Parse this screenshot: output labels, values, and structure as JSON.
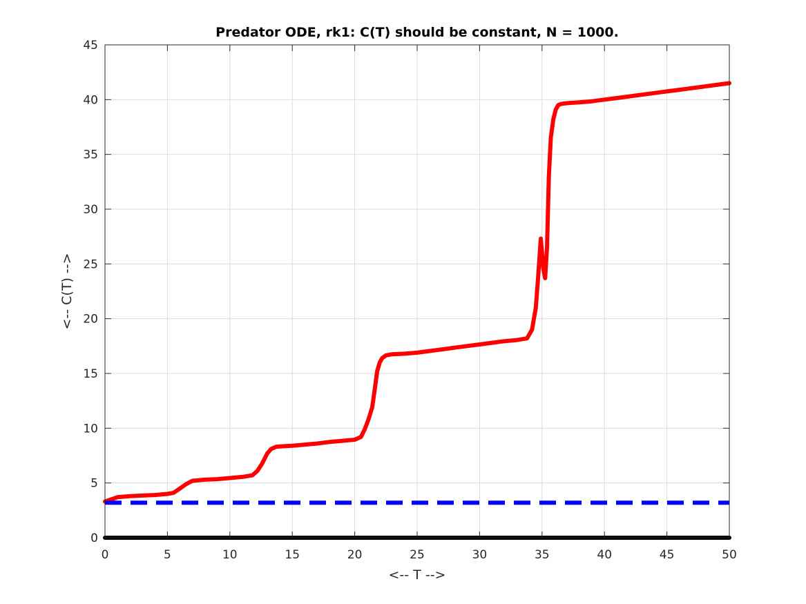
{
  "chart_data": {
    "type": "line",
    "title": "Predator ODE, rk1: C(T) should be constant, N = 1000.",
    "xlabel": "<-- T -->",
    "ylabel": "<-- C(T) -->",
    "xlim": [
      0,
      50
    ],
    "ylim": [
      0,
      45
    ],
    "xticks": [
      "0",
      "5",
      "10",
      "15",
      "20",
      "25",
      "30",
      "35",
      "40",
      "45",
      "50"
    ],
    "yticks": [
      "0",
      "5",
      "10",
      "15",
      "20",
      "25",
      "30",
      "35",
      "40",
      "45"
    ],
    "grid": true,
    "legend": "none",
    "series": [
      {
        "color": "#ff0000",
        "style": "solid",
        "x": [
          0,
          0.5,
          1,
          2,
          3,
          4,
          5,
          5.5,
          6,
          6.5,
          7,
          8,
          9,
          10,
          11,
          11.8,
          12.2,
          12.6,
          13,
          13.3,
          13.7,
          14.2,
          15,
          16,
          17,
          18,
          19,
          20,
          20.5,
          20.8,
          21.1,
          21.4,
          21.6,
          21.8,
          22,
          22.2,
          22.5,
          23,
          24,
          25,
          26,
          27,
          28,
          29,
          30,
          31,
          32,
          33,
          33.8,
          34.2,
          34.5,
          34.7,
          34.9,
          35,
          35.1,
          35.25,
          35.4,
          35.55,
          35.7,
          35.9,
          36.1,
          36.3,
          36.5,
          36.8,
          37.2,
          38,
          39,
          40,
          41,
          42,
          43,
          44,
          45,
          46,
          47,
          48,
          49,
          50
        ],
        "y": [
          3.3,
          3.5,
          3.7,
          3.8,
          3.85,
          3.9,
          4.0,
          4.1,
          4.5,
          4.9,
          5.2,
          5.3,
          5.35,
          5.45,
          5.55,
          5.7,
          6.1,
          6.8,
          7.7,
          8.1,
          8.3,
          8.35,
          8.4,
          8.5,
          8.6,
          8.75,
          8.85,
          8.95,
          9.2,
          9.9,
          10.8,
          11.9,
          13.5,
          15.2,
          16.0,
          16.4,
          16.65,
          16.75,
          16.8,
          16.9,
          17.05,
          17.2,
          17.35,
          17.5,
          17.65,
          17.8,
          17.95,
          18.05,
          18.2,
          19.0,
          21.0,
          24.0,
          27.3,
          26.0,
          24.6,
          23.7,
          26.5,
          33.0,
          36.5,
          38.2,
          39.1,
          39.5,
          39.6,
          39.65,
          39.7,
          39.75,
          39.85,
          40.0,
          40.15,
          40.3,
          40.45,
          40.6,
          40.75,
          40.9,
          41.05,
          41.2,
          41.35,
          41.5
        ]
      },
      {
        "color": "#0000ff",
        "style": "dashed",
        "x": [
          0,
          50
        ],
        "y": [
          3.2,
          3.2
        ]
      },
      {
        "color": "#000000",
        "style": "solid",
        "x": [
          0,
          50
        ],
        "y": [
          0,
          0
        ]
      }
    ]
  }
}
